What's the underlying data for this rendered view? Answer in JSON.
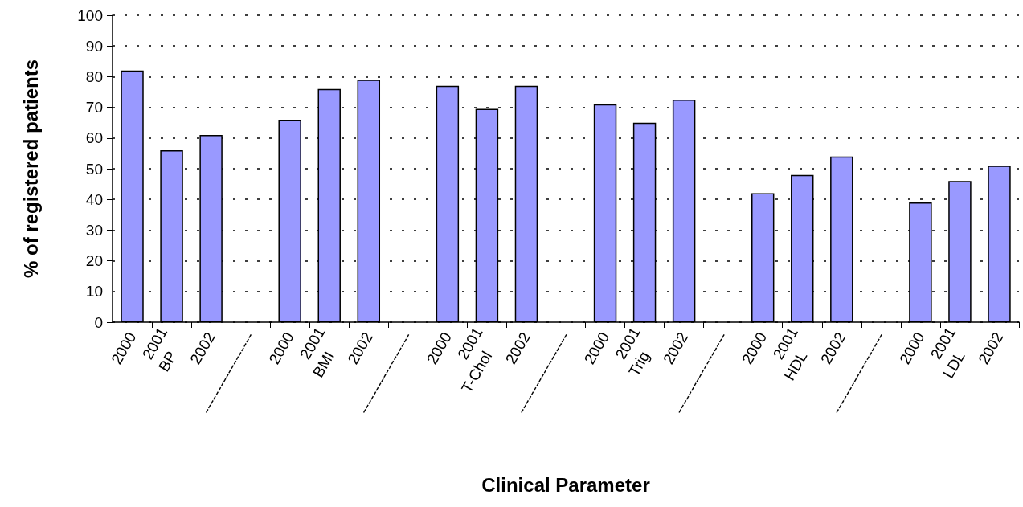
{
  "chart_data": {
    "type": "bar",
    "xlabel": "Clinical Parameter",
    "ylabel": "% of registered patients",
    "categories": [
      "2000",
      "2001\nBP",
      "2002",
      "------------------",
      "2000",
      "2001\nBMI",
      "2002",
      "------------------",
      "2000",
      "2001\nT-Chol",
      "2002",
      "------------------",
      "2000",
      "2001\nTrig",
      "2002",
      "------------------",
      "2000",
      "2001\nHDL",
      "2002",
      "------------------",
      "2000",
      "2001\nLDL",
      "2002"
    ],
    "values": [
      82,
      56,
      61,
      null,
      66,
      76,
      79,
      null,
      77,
      69.5,
      77,
      null,
      71,
      65,
      72.5,
      null,
      42,
      48,
      54,
      null,
      39,
      46,
      51
    ],
    "color": "#9999ff",
    "ylim": [
      0,
      100
    ],
    "yticks": [
      0,
      10,
      20,
      30,
      40,
      50,
      60,
      70,
      80,
      90,
      100
    ],
    "grid": "y"
  }
}
